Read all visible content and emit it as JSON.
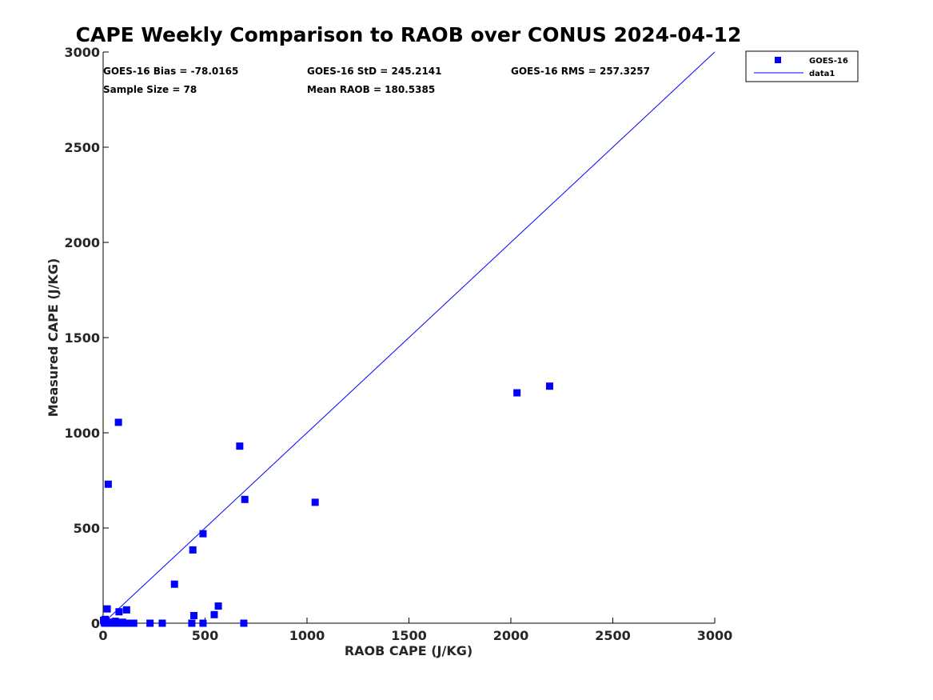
{
  "chart_data": {
    "type": "scatter",
    "title": "CAPE Weekly Comparison to RAOB over CONUS 2024-04-12",
    "xlabel": "RAOB CAPE (J/KG)",
    "ylabel": "Measured CAPE (J/KG)",
    "xlim": [
      0,
      3000
    ],
    "ylim": [
      0,
      3000
    ],
    "xticks": [
      0,
      500,
      1000,
      1500,
      2000,
      2500,
      3000
    ],
    "yticks": [
      0,
      500,
      1000,
      1500,
      2000,
      2500,
      3000
    ],
    "xtick_labels": [
      "0",
      "500",
      "1000",
      "1500",
      "2000",
      "2500",
      "3000"
    ],
    "ytick_labels": [
      "0",
      "500",
      "1000",
      "1500",
      "2000",
      "2500",
      "3000"
    ],
    "grid": false,
    "legend_position": "top-right outside",
    "series": [
      {
        "name": "GOES-16",
        "kind": "scatter",
        "marker": "square",
        "color": "#0000ff",
        "points": [
          [
            2,
            15
          ],
          [
            5,
            5
          ],
          [
            8,
            0
          ],
          [
            10,
            20
          ],
          [
            12,
            2
          ],
          [
            15,
            8
          ],
          [
            18,
            0
          ],
          [
            20,
            75
          ],
          [
            25,
            730
          ],
          [
            28,
            0
          ],
          [
            30,
            5
          ],
          [
            35,
            0
          ],
          [
            40,
            2
          ],
          [
            45,
            0
          ],
          [
            50,
            5
          ],
          [
            55,
            0
          ],
          [
            60,
            10
          ],
          [
            65,
            0
          ],
          [
            70,
            2
          ],
          [
            75,
            1055
          ],
          [
            78,
            60
          ],
          [
            85,
            0
          ],
          [
            95,
            5
          ],
          [
            100,
            0
          ],
          [
            110,
            0
          ],
          [
            115,
            70
          ],
          [
            130,
            0
          ],
          [
            150,
            0
          ],
          [
            230,
            0
          ],
          [
            290,
            0
          ],
          [
            350,
            205
          ],
          [
            435,
            0
          ],
          [
            440,
            385
          ],
          [
            445,
            40
          ],
          [
            490,
            0
          ],
          [
            490,
            470
          ],
          [
            545,
            45
          ],
          [
            565,
            90
          ],
          [
            670,
            930
          ],
          [
            690,
            0
          ],
          [
            695,
            650
          ],
          [
            1040,
            635
          ],
          [
            2030,
            1210
          ],
          [
            2190,
            1245
          ]
        ]
      },
      {
        "name": "data1",
        "kind": "line",
        "color": "#0000ff",
        "x": [
          0,
          3000
        ],
        "y": [
          0,
          3000
        ]
      }
    ],
    "annotations": [
      "GOES-16 Bias = -78.0165",
      "GOES-16 StD = 245.2141",
      "GOES-16 RMS = 257.3257",
      "Sample Size = 78",
      "Mean RAOB = 180.5385"
    ]
  }
}
